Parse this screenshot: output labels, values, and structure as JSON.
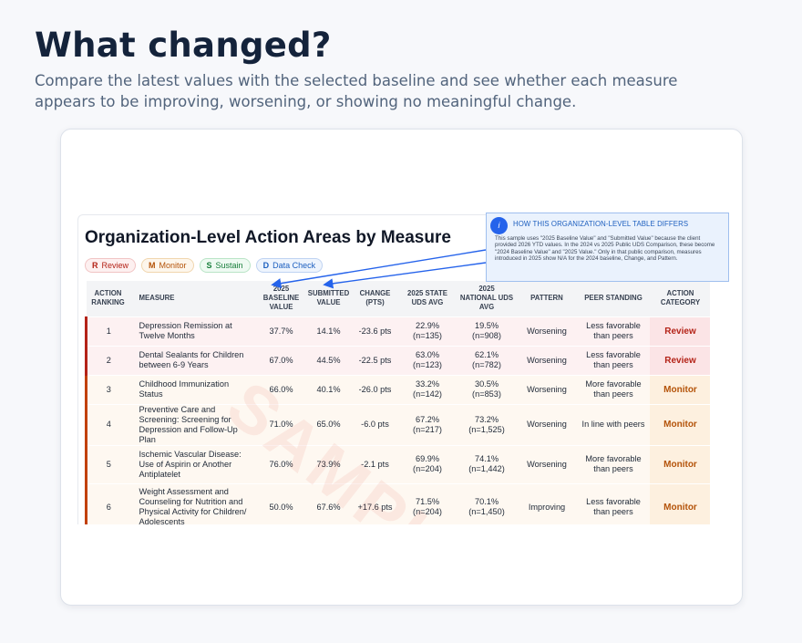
{
  "header": {
    "title": "What changed?",
    "subtitle": "Compare the latest values with the selected baseline and see whether each measure appears to be improving, worsening, or showing no meaningful change."
  },
  "document": {
    "title": "Organization-Level Action Areas by Measure",
    "watermark": "SAMPLE",
    "legend": [
      {
        "letter": "R",
        "label": "Review"
      },
      {
        "letter": "M",
        "label": "Monitor"
      },
      {
        "letter": "S",
        "label": "Sustain"
      },
      {
        "letter": "D",
        "label": "Data Check"
      }
    ],
    "columns": [
      "Action Ranking",
      "Measure",
      "2025 Baseline Value",
      "Submitted Value",
      "Change (pts)",
      "2025 State UDS Avg",
      "2025 National UDS Avg",
      "Pattern",
      "Peer Standing",
      "Action Category"
    ],
    "rows": [
      {
        "rank": "1",
        "measure": "Depression Remission at Twelve Months",
        "baseline": "37.7%",
        "submitted": "14.1%",
        "change": "-23.6 pts",
        "state": "22.9%",
        "state_n": "(n=135)",
        "national": "19.5%",
        "national_n": "(n=908)",
        "pattern": "Worsening",
        "peer": "Less favorable than peers",
        "category": "Review"
      },
      {
        "rank": "2",
        "measure": "Dental Sealants for Children between 6-9 Years",
        "baseline": "67.0%",
        "submitted": "44.5%",
        "change": "-22.5 pts",
        "state": "63.0%",
        "state_n": "(n=123)",
        "national": "62.1%",
        "national_n": "(n=782)",
        "pattern": "Worsening",
        "peer": "Less favorable than peers",
        "category": "Review"
      },
      {
        "rank": "3",
        "measure": "Childhood Immunization Status",
        "baseline": "66.0%",
        "submitted": "40.1%",
        "change": "-26.0 pts",
        "state": "33.2%",
        "state_n": "(n=142)",
        "national": "30.5%",
        "national_n": "(n=853)",
        "pattern": "Worsening",
        "peer": "More favorable than peers",
        "category": "Monitor"
      },
      {
        "rank": "4",
        "measure": "Preventive Care and Screening: Screening for Depression and Follow-Up Plan",
        "baseline": "71.0%",
        "submitted": "65.0%",
        "change": "-6.0 pts",
        "state": "67.2%",
        "state_n": "(n=217)",
        "national": "73.2%",
        "national_n": "(n=1,525)",
        "pattern": "Worsening",
        "peer": "In line with peers",
        "category": "Monitor"
      },
      {
        "rank": "5",
        "measure": "Ischemic Vascular Disease: Use of Aspirin or Another Antiplatelet",
        "baseline": "76.0%",
        "submitted": "73.9%",
        "change": "-2.1 pts",
        "state": "69.9%",
        "state_n": "(n=204)",
        "national": "74.1%",
        "national_n": "(n=1,442)",
        "pattern": "Worsening",
        "peer": "More favorable than peers",
        "category": "Monitor"
      },
      {
        "rank": "6",
        "measure": "Weight Assessment and Counseling for Nutrition and Physical Activity for Children/ Adolescents",
        "baseline": "50.0%",
        "submitted": "67.6%",
        "change": "+17.6 pts",
        "state": "71.5%",
        "state_n": "(n=204)",
        "national": "70.1%",
        "national_n": "(n=1,450)",
        "pattern": "Improving",
        "peer": "Less favorable than peers",
        "category": "Monitor"
      }
    ]
  },
  "callout": {
    "icon": "info-icon",
    "icon_glyph": "i",
    "title": "How this organization-level table differs",
    "body": "This sample uses \"2025 Baseline Value\" and \"Submitted Value\" because the client provided 2026 YTD values. In the 2024 vs 2025 Public UDS Comparison, these become \"2024 Baseline Value\" and \"2025 Value.\" Only in that public comparison, measures introduced in 2025 show N/A for the 2024 baseline, Change, and Pattern."
  },
  "colors": {
    "review": "#b42318",
    "monitor": "#b45309",
    "sustain": "#167d3a",
    "data_check": "#1d5fbf",
    "arrow": "#2563eb"
  }
}
